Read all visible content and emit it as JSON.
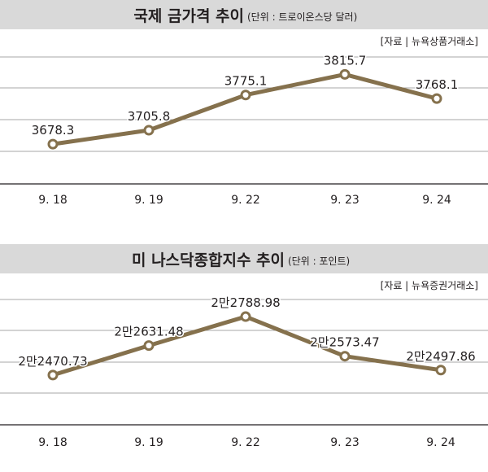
{
  "chart_data": [
    {
      "type": "line",
      "title": "국제 금가격 추이",
      "unit_note": "(단위 : 트로이온스당 달러)",
      "source": "[자료 | 뉴욕상품거래소]",
      "categories": [
        "9. 18",
        "9. 19",
        "9. 22",
        "9. 23",
        "9. 24"
      ],
      "values": [
        3678.3,
        3705.8,
        3775.1,
        3815.7,
        3768.1
      ],
      "labels": [
        "3678.3",
        "3705.8",
        "3775.1",
        "3815.7",
        "3768.1"
      ],
      "ylim": [
        3600,
        3850
      ],
      "grid": true,
      "line_color": "#85714d",
      "marker_fill": "#ffffff"
    },
    {
      "type": "line",
      "title": "미 나스닥종합지수 추이",
      "unit_note": "(단위 : 포인트)",
      "source": "[자료 | 뉴욕증권거래소]",
      "categories": [
        "9. 18",
        "9. 19",
        "9. 22",
        "9. 23",
        "9. 24"
      ],
      "values": [
        22470.73,
        22631.48,
        22788.98,
        22573.47,
        22497.86
      ],
      "labels": [
        "2만2470.73",
        "2만2631.48",
        "2만2788.98",
        "2만2573.47",
        "2만2497.86"
      ],
      "ylim": [
        22200,
        22900
      ],
      "grid": true,
      "line_color": "#85714d",
      "marker_fill": "#ffffff"
    }
  ]
}
